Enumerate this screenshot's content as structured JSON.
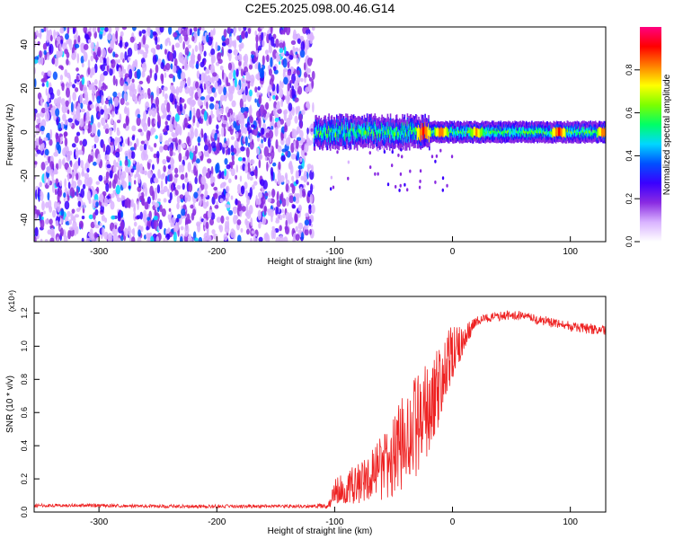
{
  "title": "C2E5.2025.098.00.46.G14",
  "chart_data": [
    {
      "type": "heatmap",
      "xlabel": "Height of straight line (km)",
      "ylabel": "Frequency (Hz)",
      "xlim": [
        -355,
        130
      ],
      "ylim": [
        -50,
        48
      ],
      "x_ticks": [
        -300,
        -200,
        -100,
        0,
        100
      ],
      "y_ticks": [
        -40,
        -20,
        0,
        20,
        40
      ],
      "x_tick_labels": [
        "-300",
        "-200",
        "-100",
        "0",
        "100"
      ],
      "y_tick_labels": [
        "-40",
        "-20",
        "0",
        "20",
        "40"
      ],
      "colorbar": {
        "label": "Normalized spectral amplitude",
        "range": [
          0,
          1
        ],
        "ticks": [
          0.0,
          0.2,
          0.4,
          0.6,
          0.8
        ],
        "tick_labels": [
          "0.0",
          "0.2",
          "0.4",
          "0.6",
          "0.8"
        ],
        "colormap": [
          "#ffffff",
          "#d9b3ff",
          "#8a2be2",
          "#3a00ff",
          "#0050ff",
          "#00d7ff",
          "#00ff66",
          "#7cff00",
          "#ffff00",
          "#ff8000",
          "#ff0000",
          "#ff0080"
        ]
      },
      "regions": [
        {
          "name": "noise",
          "x_range": [
            -355,
            -118
          ],
          "y_range": [
            -50,
            48
          ],
          "amplitude": 0.1
        },
        {
          "name": "signal",
          "x_range": [
            -118,
            130
          ],
          "center_hz": 0,
          "halfwidth_hz": 4,
          "amplitude": 0.55
        }
      ],
      "signal_peaks": [
        {
          "x": -25,
          "amplitude": 0.9
        },
        {
          "x": -10,
          "amplitude": 0.85
        },
        {
          "x": 20,
          "amplitude": 0.8
        },
        {
          "x": 90,
          "amplitude": 0.9
        },
        {
          "x": 128,
          "amplitude": 0.85
        }
      ],
      "grid": false
    },
    {
      "type": "line",
      "xlabel": "Height of straight line (km)",
      "ylabel": "SNR (10 * v/v)",
      "y_multiplier": "(x10⁴)",
      "xlim": [
        -355,
        130
      ],
      "ylim": [
        0,
        1.3
      ],
      "x_ticks": [
        -300,
        -200,
        -100,
        0,
        100
      ],
      "y_ticks": [
        0.0,
        0.2,
        0.4,
        0.6,
        0.8,
        1.0,
        1.2
      ],
      "x_tick_labels": [
        "-300",
        "-200",
        "-100",
        "0",
        "100"
      ],
      "y_tick_labels": [
        "0.0",
        "0.2",
        "0.4",
        "0.6",
        "0.8",
        "1.0",
        "1.2"
      ],
      "color": "#ee2222",
      "series": [
        {
          "x": [
            -355,
            -300,
            -250,
            -200,
            -150,
            -120,
            -105,
            -100,
            -90,
            -80,
            -70,
            -60,
            -50,
            -40,
            -30,
            -20,
            -10,
            0,
            10,
            20,
            30,
            40,
            50,
            60,
            70,
            80,
            90,
            100,
            110,
            120,
            130
          ],
          "y": [
            0.04,
            0.04,
            0.035,
            0.035,
            0.035,
            0.035,
            0.04,
            0.12,
            0.15,
            0.17,
            0.22,
            0.26,
            0.32,
            0.45,
            0.52,
            0.62,
            0.78,
            0.95,
            1.05,
            1.15,
            1.17,
            1.18,
            1.19,
            1.18,
            1.16,
            1.15,
            1.13,
            1.12,
            1.11,
            1.1,
            1.09
          ],
          "noise": [
            0.01,
            0.01,
            0.01,
            0.01,
            0.01,
            0.01,
            0.02,
            0.08,
            0.1,
            0.12,
            0.15,
            0.2,
            0.25,
            0.3,
            0.3,
            0.3,
            0.25,
            0.18,
            0.08,
            0.03,
            0.03,
            0.03,
            0.03,
            0.03,
            0.03,
            0.03,
            0.03,
            0.03,
            0.03,
            0.03,
            0.03
          ]
        }
      ],
      "grid": false
    }
  ]
}
